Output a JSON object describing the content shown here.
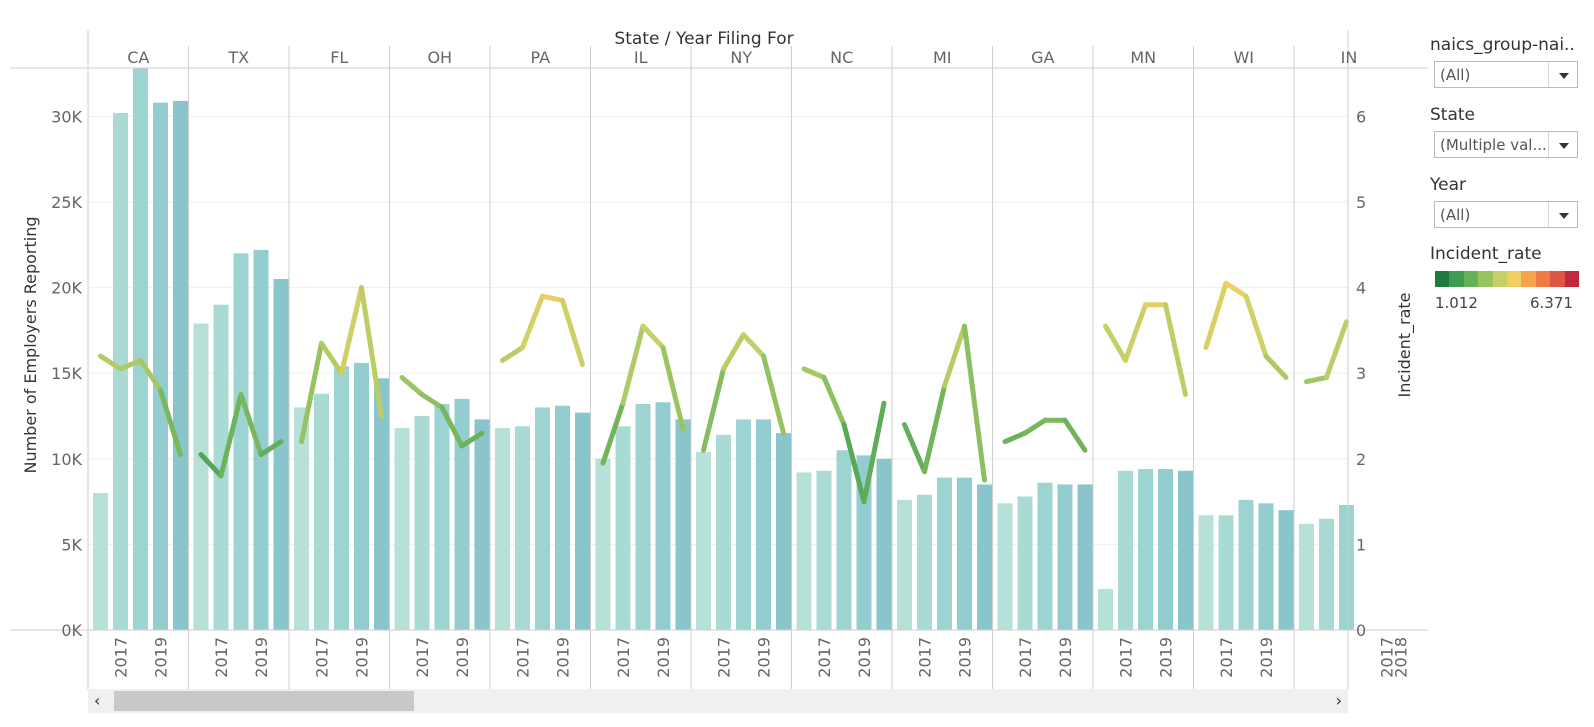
{
  "header": {
    "title": "State / Year Filing For"
  },
  "controls": {
    "naics_label": "naics_group-nai..",
    "naics_value": "(All)",
    "state_label": "State",
    "state_value": "(Multiple val...",
    "year_label": "Year",
    "year_value": "(All)",
    "incident_label": "Incident_rate",
    "incident_min": "1.012",
    "incident_max": "6.371",
    "ramp_colors": [
      "#1e7b3f",
      "#3f9b52",
      "#68b15b",
      "#98c361",
      "#c7d068",
      "#f0cf63",
      "#f5a34d",
      "#ee7d45",
      "#dd5544",
      "#c4283d"
    ]
  },
  "chart_data": {
    "type": "bar",
    "title": "State / Year Filing For",
    "ylabel": "Number of Employers Reporting",
    "y2label": "Incident_rate",
    "ylim": [
      0,
      33000
    ],
    "y2lim": [
      0,
      6.6
    ],
    "yticks": [
      "0K",
      "5K",
      "10K",
      "15K",
      "20K",
      "25K",
      "30K"
    ],
    "y2ticks": [
      "0",
      "1",
      "2",
      "3",
      "4",
      "5",
      "6"
    ],
    "x_tick_labels": [
      "2017",
      "2019"
    ],
    "partial_x_tick_labels": [
      "2017",
      "2018"
    ],
    "bar_colors": [
      "#b7e0d8",
      "#a9dbd4",
      "#9dd3d1",
      "#93cdcf",
      "#89c5cb"
    ],
    "states": [
      {
        "name": "CA",
        "employers": [
          8000,
          30200,
          32800,
          30800,
          30900
        ],
        "rate": [
          3.2,
          3.05,
          3.15,
          2.8,
          2.05
        ]
      },
      {
        "name": "TX",
        "employers": [
          17900,
          19000,
          22000,
          22200,
          20500
        ],
        "rate": [
          2.05,
          1.8,
          2.75,
          2.05,
          2.2
        ]
      },
      {
        "name": "FL",
        "employers": [
          13000,
          13800,
          15400,
          15600,
          14700
        ],
        "rate": [
          2.2,
          3.35,
          3.0,
          4.0,
          2.5
        ]
      },
      {
        "name": "OH",
        "employers": [
          11800,
          12500,
          13200,
          13500,
          12300
        ],
        "rate": [
          2.95,
          2.75,
          2.6,
          2.15,
          2.3
        ]
      },
      {
        "name": "PA",
        "employers": [
          11800,
          11900,
          13000,
          13100,
          12700
        ],
        "rate": [
          3.15,
          3.3,
          3.9,
          3.85,
          3.1
        ]
      },
      {
        "name": "IL",
        "employers": [
          10000,
          11900,
          13200,
          13300,
          12300
        ],
        "rate": [
          1.95,
          2.65,
          3.55,
          3.3,
          2.35
        ]
      },
      {
        "name": "NY",
        "employers": [
          10400,
          11400,
          12300,
          12300,
          11500
        ],
        "rate": [
          2.1,
          3.05,
          3.45,
          3.2,
          2.3
        ]
      },
      {
        "name": "NC",
        "employers": [
          9200,
          9300,
          10500,
          10200,
          10000
        ],
        "rate": [
          3.05,
          2.95,
          2.4,
          1.5,
          2.65
        ]
      },
      {
        "name": "MI",
        "employers": [
          7600,
          7900,
          8900,
          8900,
          8500
        ],
        "rate": [
          2.4,
          1.85,
          2.85,
          3.55,
          1.75
        ]
      },
      {
        "name": "GA",
        "employers": [
          7400,
          7800,
          8600,
          8500,
          8500
        ],
        "rate": [
          2.2,
          2.3,
          2.45,
          2.45,
          2.1
        ]
      },
      {
        "name": "MN",
        "employers": [
          2400,
          9300,
          9400,
          9400,
          9300
        ],
        "rate": [
          3.55,
          3.15,
          3.8,
          3.8,
          2.75
        ]
      },
      {
        "name": "WI",
        "employers": [
          6700,
          6700,
          7600,
          7400,
          7000
        ],
        "rate": [
          3.3,
          4.05,
          3.9,
          3.2,
          2.95
        ]
      },
      {
        "name": "IN",
        "employers": [
          6200,
          6500,
          7300
        ],
        "rate": [
          2.9,
          2.95,
          3.6
        ]
      }
    ]
  }
}
